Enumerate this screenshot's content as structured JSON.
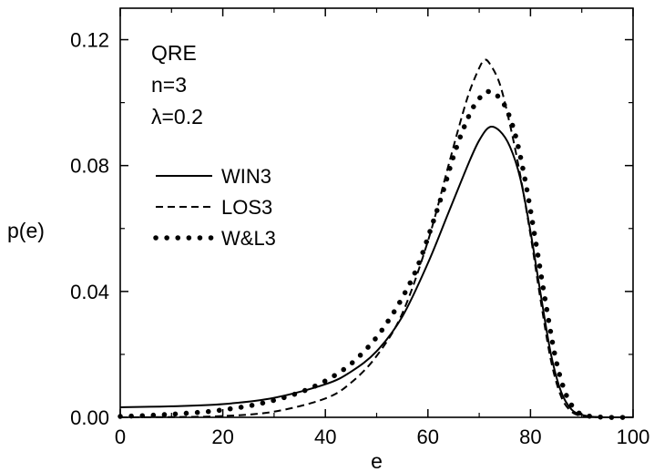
{
  "chart_data": {
    "type": "line",
    "xlabel": "e",
    "ylabel": "p(e)",
    "xlim": [
      0,
      100
    ],
    "ylim": [
      0,
      0.13
    ],
    "xticks": [
      0,
      20,
      40,
      60,
      80,
      100
    ],
    "xtick_labels": [
      "0",
      "20",
      "40",
      "60",
      "80",
      "100"
    ],
    "yticks": [
      0,
      0.04,
      0.08,
      0.12
    ],
    "ytick_labels": [
      "0.00",
      "0.04",
      "0.08",
      "0.12"
    ],
    "grid": false,
    "legend_position": "top-left",
    "annotations": [
      "QRE",
      "n=3",
      "λ=0.2"
    ],
    "series": [
      {
        "name": "WIN3",
        "style": "solid",
        "x": [
          0,
          10,
          20,
          30,
          40,
          45,
          50,
          55,
          60,
          64,
          68,
          70,
          72,
          74,
          76,
          78,
          80,
          82,
          84,
          86,
          88,
          90,
          92,
          95,
          100
        ],
        "values": [
          0.0032,
          0.0035,
          0.0042,
          0.0062,
          0.0105,
          0.0145,
          0.021,
          0.032,
          0.049,
          0.065,
          0.081,
          0.088,
          0.0922,
          0.091,
          0.086,
          0.076,
          0.059,
          0.039,
          0.02,
          0.008,
          0.0025,
          0.0008,
          0.0002,
          0.0,
          0.0
        ]
      },
      {
        "name": "LOS3",
        "style": "dashed",
        "x": [
          0,
          10,
          20,
          30,
          40,
          45,
          50,
          55,
          60,
          64,
          66,
          68,
          70,
          71,
          72,
          74,
          76,
          78,
          80,
          82,
          84,
          86,
          88,
          90,
          92,
          95,
          100
        ],
        "values": [
          0.0,
          0.0001,
          0.0004,
          0.0018,
          0.006,
          0.011,
          0.0195,
          0.033,
          0.056,
          0.08,
          0.092,
          0.103,
          0.111,
          0.1135,
          0.1125,
          0.106,
          0.093,
          0.077,
          0.058,
          0.037,
          0.018,
          0.0065,
          0.0018,
          0.0004,
          0.0001,
          0.0,
          0.0
        ]
      },
      {
        "name": "W&L3",
        "style": "dotted",
        "x": [
          0,
          4,
          8,
          12,
          17,
          21,
          25,
          29,
          33,
          37,
          41,
          45,
          49,
          52,
          55,
          58,
          61,
          63,
          65,
          67,
          69,
          71,
          72,
          73,
          75,
          77,
          79,
          81,
          83,
          85,
          87,
          89,
          91,
          95,
          100
        ],
        "values": [
          0.0003,
          0.0005,
          0.0008,
          0.0012,
          0.0018,
          0.0026,
          0.0036,
          0.005,
          0.0068,
          0.0092,
          0.0125,
          0.017,
          0.0235,
          0.03,
          0.038,
          0.048,
          0.062,
          0.072,
          0.083,
          0.092,
          0.099,
          0.103,
          0.1035,
          0.103,
          0.099,
          0.09,
          0.075,
          0.056,
          0.036,
          0.018,
          0.007,
          0.002,
          0.0005,
          0.0,
          0.0
        ]
      }
    ]
  }
}
